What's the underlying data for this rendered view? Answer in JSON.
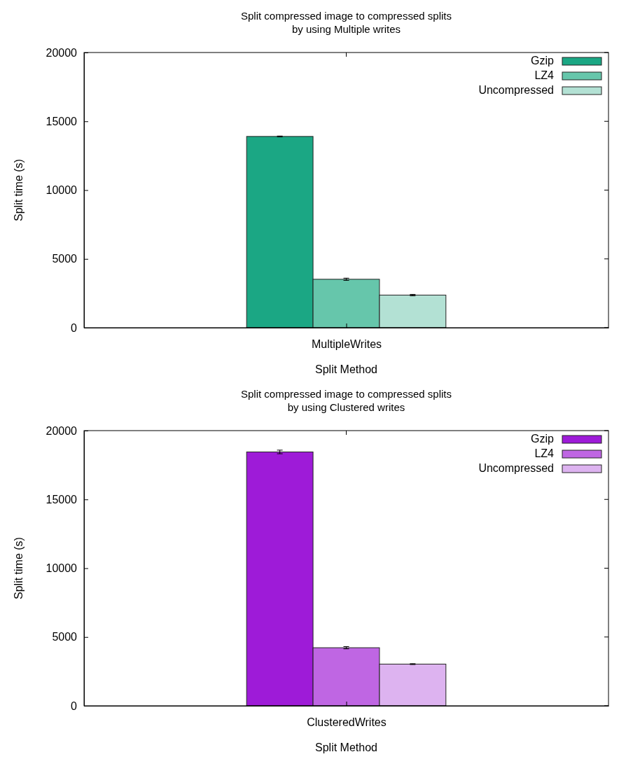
{
  "chart_data": [
    {
      "type": "bar",
      "title": "Split compressed image to compressed splits\nby using Multiple writes",
      "xlabel": "Split Method",
      "ylabel": "Split time (s)",
      "categories": [
        "MultipleWrites"
      ],
      "ylim": [
        0,
        20000
      ],
      "yticks": [
        0,
        5000,
        10000,
        15000,
        20000
      ],
      "legend": "top right",
      "grid": false,
      "series": [
        {
          "name": "Gzip",
          "color": "#1ba784",
          "values": [
            13900
          ],
          "errors": [
            30
          ]
        },
        {
          "name": "LZ4",
          "color": "#66c6ab",
          "values": [
            3520
          ],
          "errors": [
            80
          ]
        },
        {
          "name": "Uncompressed",
          "color": "#b3e1d4",
          "values": [
            2370
          ],
          "errors": [
            50
          ]
        }
      ]
    },
    {
      "type": "bar",
      "title": "Split compressed image to compressed splits\nby using Clustered writes",
      "xlabel": "Split Method",
      "ylabel": "Split time (s)",
      "categories": [
        "ClusteredWrites"
      ],
      "ylim": [
        0,
        20000
      ],
      "yticks": [
        0,
        5000,
        10000,
        15000,
        20000
      ],
      "legend": "top right",
      "grid": false,
      "series": [
        {
          "name": "Gzip",
          "color": "#9e1bd8",
          "values": [
            18450
          ],
          "errors": [
            130
          ]
        },
        {
          "name": "LZ4",
          "color": "#bf66e3",
          "values": [
            4220
          ],
          "errors": [
            80
          ]
        },
        {
          "name": "Uncompressed",
          "color": "#ddb3f0",
          "values": [
            3030
          ],
          "errors": [
            30
          ]
        }
      ]
    }
  ]
}
